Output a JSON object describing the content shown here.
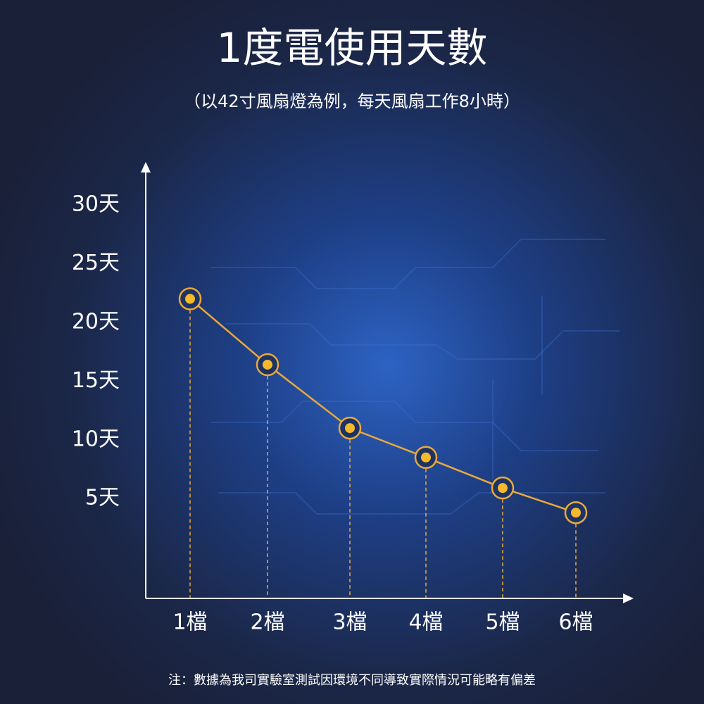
{
  "chart_data": {
    "type": "line",
    "title": "1度電使用天數",
    "subtitle": "（以42寸風扇燈為例，每天風扇工作8小時）",
    "note": "注：數據為我司實驗室測試因環境不同導致實際情況可能略有偏差",
    "categories": [
      "1檔",
      "2檔",
      "3檔",
      "4檔",
      "5檔",
      "6檔"
    ],
    "series": [
      {
        "color": "#e9a93a",
        "values": [
          22,
          16.4,
          11,
          8.5,
          5.9,
          3.8
        ]
      }
    ],
    "ylim": [
      -3.5,
      33
    ],
    "yticks": [
      {
        "value": 5,
        "label": "5天"
      },
      {
        "value": 10,
        "label": "10天"
      },
      {
        "value": 15,
        "label": "15天"
      },
      {
        "value": 20,
        "label": "20天"
      },
      {
        "value": 25,
        "label": "25天"
      },
      {
        "value": 30,
        "label": "30天"
      }
    ],
    "grid": false
  }
}
